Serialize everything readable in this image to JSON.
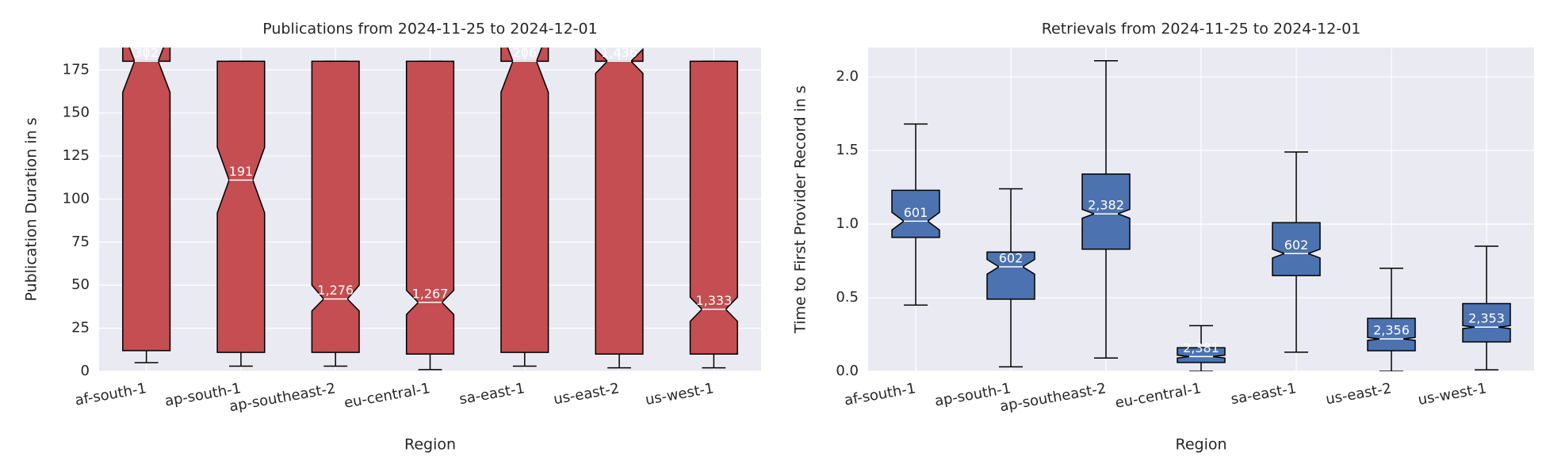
{
  "chart_data": [
    {
      "type": "box",
      "title": "Publications from 2024-11-25 to 2024-12-01",
      "xlabel": "Region",
      "ylabel": "Publication Duration in s",
      "color": "#c44e52",
      "grid": true,
      "categories": [
        "af-south-1",
        "ap-south-1",
        "ap-southeast-2",
        "eu-central-1",
        "sa-east-1",
        "us-east-2",
        "us-west-1"
      ],
      "ylim": [
        0,
        188
      ],
      "yticks": [
        0,
        25,
        50,
        75,
        100,
        125,
        150,
        175
      ],
      "boxes": [
        {
          "whislo": 5,
          "q1": 12,
          "med": 180,
          "q3": 180,
          "whishi": 180,
          "notch": [
            162,
            198
          ]
        },
        {
          "whislo": 3,
          "q1": 11,
          "med": 111,
          "q3": 180,
          "whishi": 180,
          "notch": [
            92,
            130
          ]
        },
        {
          "whislo": 3,
          "q1": 11,
          "med": 42,
          "q3": 180,
          "whishi": 180,
          "notch": [
            35,
            50
          ]
        },
        {
          "whislo": 1,
          "q1": 10,
          "med": 40,
          "q3": 180,
          "whishi": 180,
          "notch": [
            33,
            47
          ]
        },
        {
          "whislo": 3,
          "q1": 11,
          "med": 180,
          "q3": 180,
          "whishi": 180,
          "notch": [
            162,
            198
          ]
        },
        {
          "whislo": 2,
          "q1": 10,
          "med": 180,
          "q3": 180,
          "whishi": 180,
          "notch": [
            173,
            187
          ]
        },
        {
          "whislo": 2,
          "q1": 10,
          "med": 36,
          "q3": 180,
          "whishi": 180,
          "notch": [
            29,
            43
          ]
        }
      ],
      "count_labels": [
        "302",
        "191",
        "1,276",
        "1,267",
        "206",
        "1,436",
        "1,333"
      ]
    },
    {
      "type": "box",
      "title": "Retrievals from 2024-11-25 to 2024-12-01",
      "xlabel": "Region",
      "ylabel": "Time to First Provider Record in s",
      "color": "#4c72b0",
      "grid": true,
      "categories": [
        "af-south-1",
        "ap-south-1",
        "ap-southeast-2",
        "eu-central-1",
        "sa-east-1",
        "us-east-2",
        "us-west-1"
      ],
      "ylim": [
        0,
        2.2
      ],
      "yticks": [
        {
          "value": 0,
          "label": "0.0"
        },
        {
          "value": 0.5,
          "label": "0.5"
        },
        {
          "value": 1,
          "label": "1.0"
        },
        {
          "value": 1.5,
          "label": "1.5"
        },
        {
          "value": 2,
          "label": "2.0"
        }
      ],
      "boxes": [
        {
          "whislo": 0.45,
          "q1": 0.91,
          "med": 1.02,
          "q3": 1.23,
          "whishi": 1.68,
          "notch": [
            0.96,
            1.08
          ]
        },
        {
          "whislo": 0.03,
          "q1": 0.49,
          "med": 0.71,
          "q3": 0.81,
          "whishi": 1.24,
          "notch": [
            0.66,
            0.76
          ]
        },
        {
          "whislo": 0.09,
          "q1": 0.83,
          "med": 1.07,
          "q3": 1.34,
          "whishi": 2.11,
          "notch": [
            1.04,
            1.1
          ]
        },
        {
          "whislo": 0,
          "q1": 0.06,
          "med": 0.1,
          "q3": 0.16,
          "whishi": 0.31,
          "notch": [
            0.09,
            0.11
          ]
        },
        {
          "whislo": 0.13,
          "q1": 0.65,
          "med": 0.8,
          "q3": 1.01,
          "whishi": 1.49,
          "notch": [
            0.77,
            0.83
          ]
        },
        {
          "whislo": 0,
          "q1": 0.14,
          "med": 0.22,
          "q3": 0.36,
          "whishi": 0.7,
          "notch": [
            0.21,
            0.23
          ]
        },
        {
          "whislo": 0.01,
          "q1": 0.2,
          "med": 0.3,
          "q3": 0.46,
          "whishi": 0.85,
          "notch": [
            0.29,
            0.31
          ]
        }
      ],
      "count_labels": [
        "601",
        "602",
        "2,382",
        "2,381",
        "602",
        "2,356",
        "2,353"
      ]
    }
  ]
}
